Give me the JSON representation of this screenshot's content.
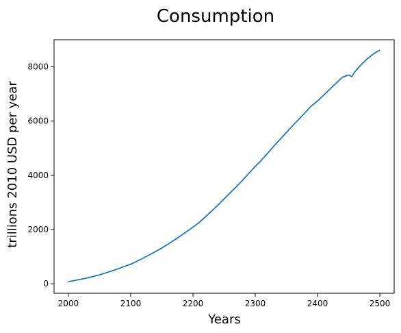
{
  "chart_data": {
    "type": "line",
    "title": "Consumption",
    "xlabel": "Years",
    "ylabel": "trillions 2010 USD per year",
    "xlim": [
      1977,
      2523
    ],
    "ylim": [
      -350,
      9000
    ],
    "xticks": [
      2000,
      2100,
      2200,
      2300,
      2400,
      2500
    ],
    "yticks": [
      0,
      2000,
      4000,
      6000,
      8000
    ],
    "grid": false,
    "series": [
      {
        "color": "#1f77b4",
        "x": [
          2000,
          2010,
          2020,
          2030,
          2040,
          2050,
          2060,
          2070,
          2080,
          2090,
          2100,
          2110,
          2120,
          2130,
          2140,
          2150,
          2160,
          2170,
          2180,
          2190,
          2200,
          2210,
          2220,
          2230,
          2240,
          2250,
          2260,
          2270,
          2280,
          2290,
          2300,
          2310,
          2320,
          2330,
          2340,
          2350,
          2360,
          2370,
          2380,
          2390,
          2400,
          2410,
          2420,
          2430,
          2440,
          2450,
          2455,
          2460,
          2470,
          2480,
          2490,
          2500
        ],
        "y": [
          80,
          120,
          165,
          215,
          270,
          330,
          400,
          475,
          555,
          640,
          720,
          830,
          945,
          1065,
          1190,
          1320,
          1460,
          1610,
          1765,
          1925,
          2090,
          2260,
          2470,
          2680,
          2900,
          3130,
          3360,
          3590,
          3830,
          4080,
          4330,
          4560,
          4820,
          5080,
          5330,
          5580,
          5830,
          6070,
          6310,
          6560,
          6740,
          6960,
          7180,
          7400,
          7620,
          7700,
          7640,
          7820,
          8080,
          8300,
          8480,
          8620
        ]
      }
    ]
  }
}
